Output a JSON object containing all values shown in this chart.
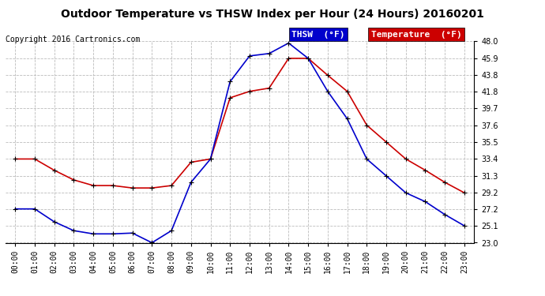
{
  "title": "Outdoor Temperature vs THSW Index per Hour (24 Hours) 20160201",
  "copyright": "Copyright 2016 Cartronics.com",
  "hours": [
    "00:00",
    "01:00",
    "02:00",
    "03:00",
    "04:00",
    "05:00",
    "06:00",
    "07:00",
    "08:00",
    "09:00",
    "10:00",
    "11:00",
    "12:00",
    "13:00",
    "14:00",
    "15:00",
    "16:00",
    "17:00",
    "18:00",
    "19:00",
    "20:00",
    "21:00",
    "22:00",
    "23:00"
  ],
  "thsw": [
    27.2,
    27.2,
    25.6,
    24.5,
    24.1,
    24.1,
    24.2,
    23.0,
    24.5,
    30.5,
    33.4,
    43.0,
    46.2,
    46.5,
    47.8,
    45.9,
    41.8,
    38.4,
    33.4,
    31.3,
    29.2,
    28.1,
    26.5,
    25.1
  ],
  "temp": [
    33.4,
    33.4,
    32.0,
    30.8,
    30.1,
    30.1,
    29.8,
    29.8,
    30.1,
    33.0,
    33.4,
    41.0,
    41.8,
    42.2,
    45.9,
    45.9,
    43.8,
    41.8,
    37.6,
    35.5,
    33.4,
    32.0,
    30.5,
    29.2
  ],
  "thsw_color": "#0000cc",
  "temp_color": "#cc0000",
  "bg_color": "#ffffff",
  "grid_color": "#bbbbbb",
  "ylim_min": 23.0,
  "ylim_max": 48.0,
  "yticks": [
    23.0,
    25.1,
    27.2,
    29.2,
    31.3,
    33.4,
    35.5,
    37.6,
    39.7,
    41.8,
    43.8,
    45.9,
    48.0
  ],
  "legend_thsw_bg": "#0000cc",
  "legend_temp_bg": "#cc0000",
  "title_fontsize": 10,
  "copyright_fontsize": 7,
  "tick_fontsize": 7,
  "legend_fontsize": 8
}
